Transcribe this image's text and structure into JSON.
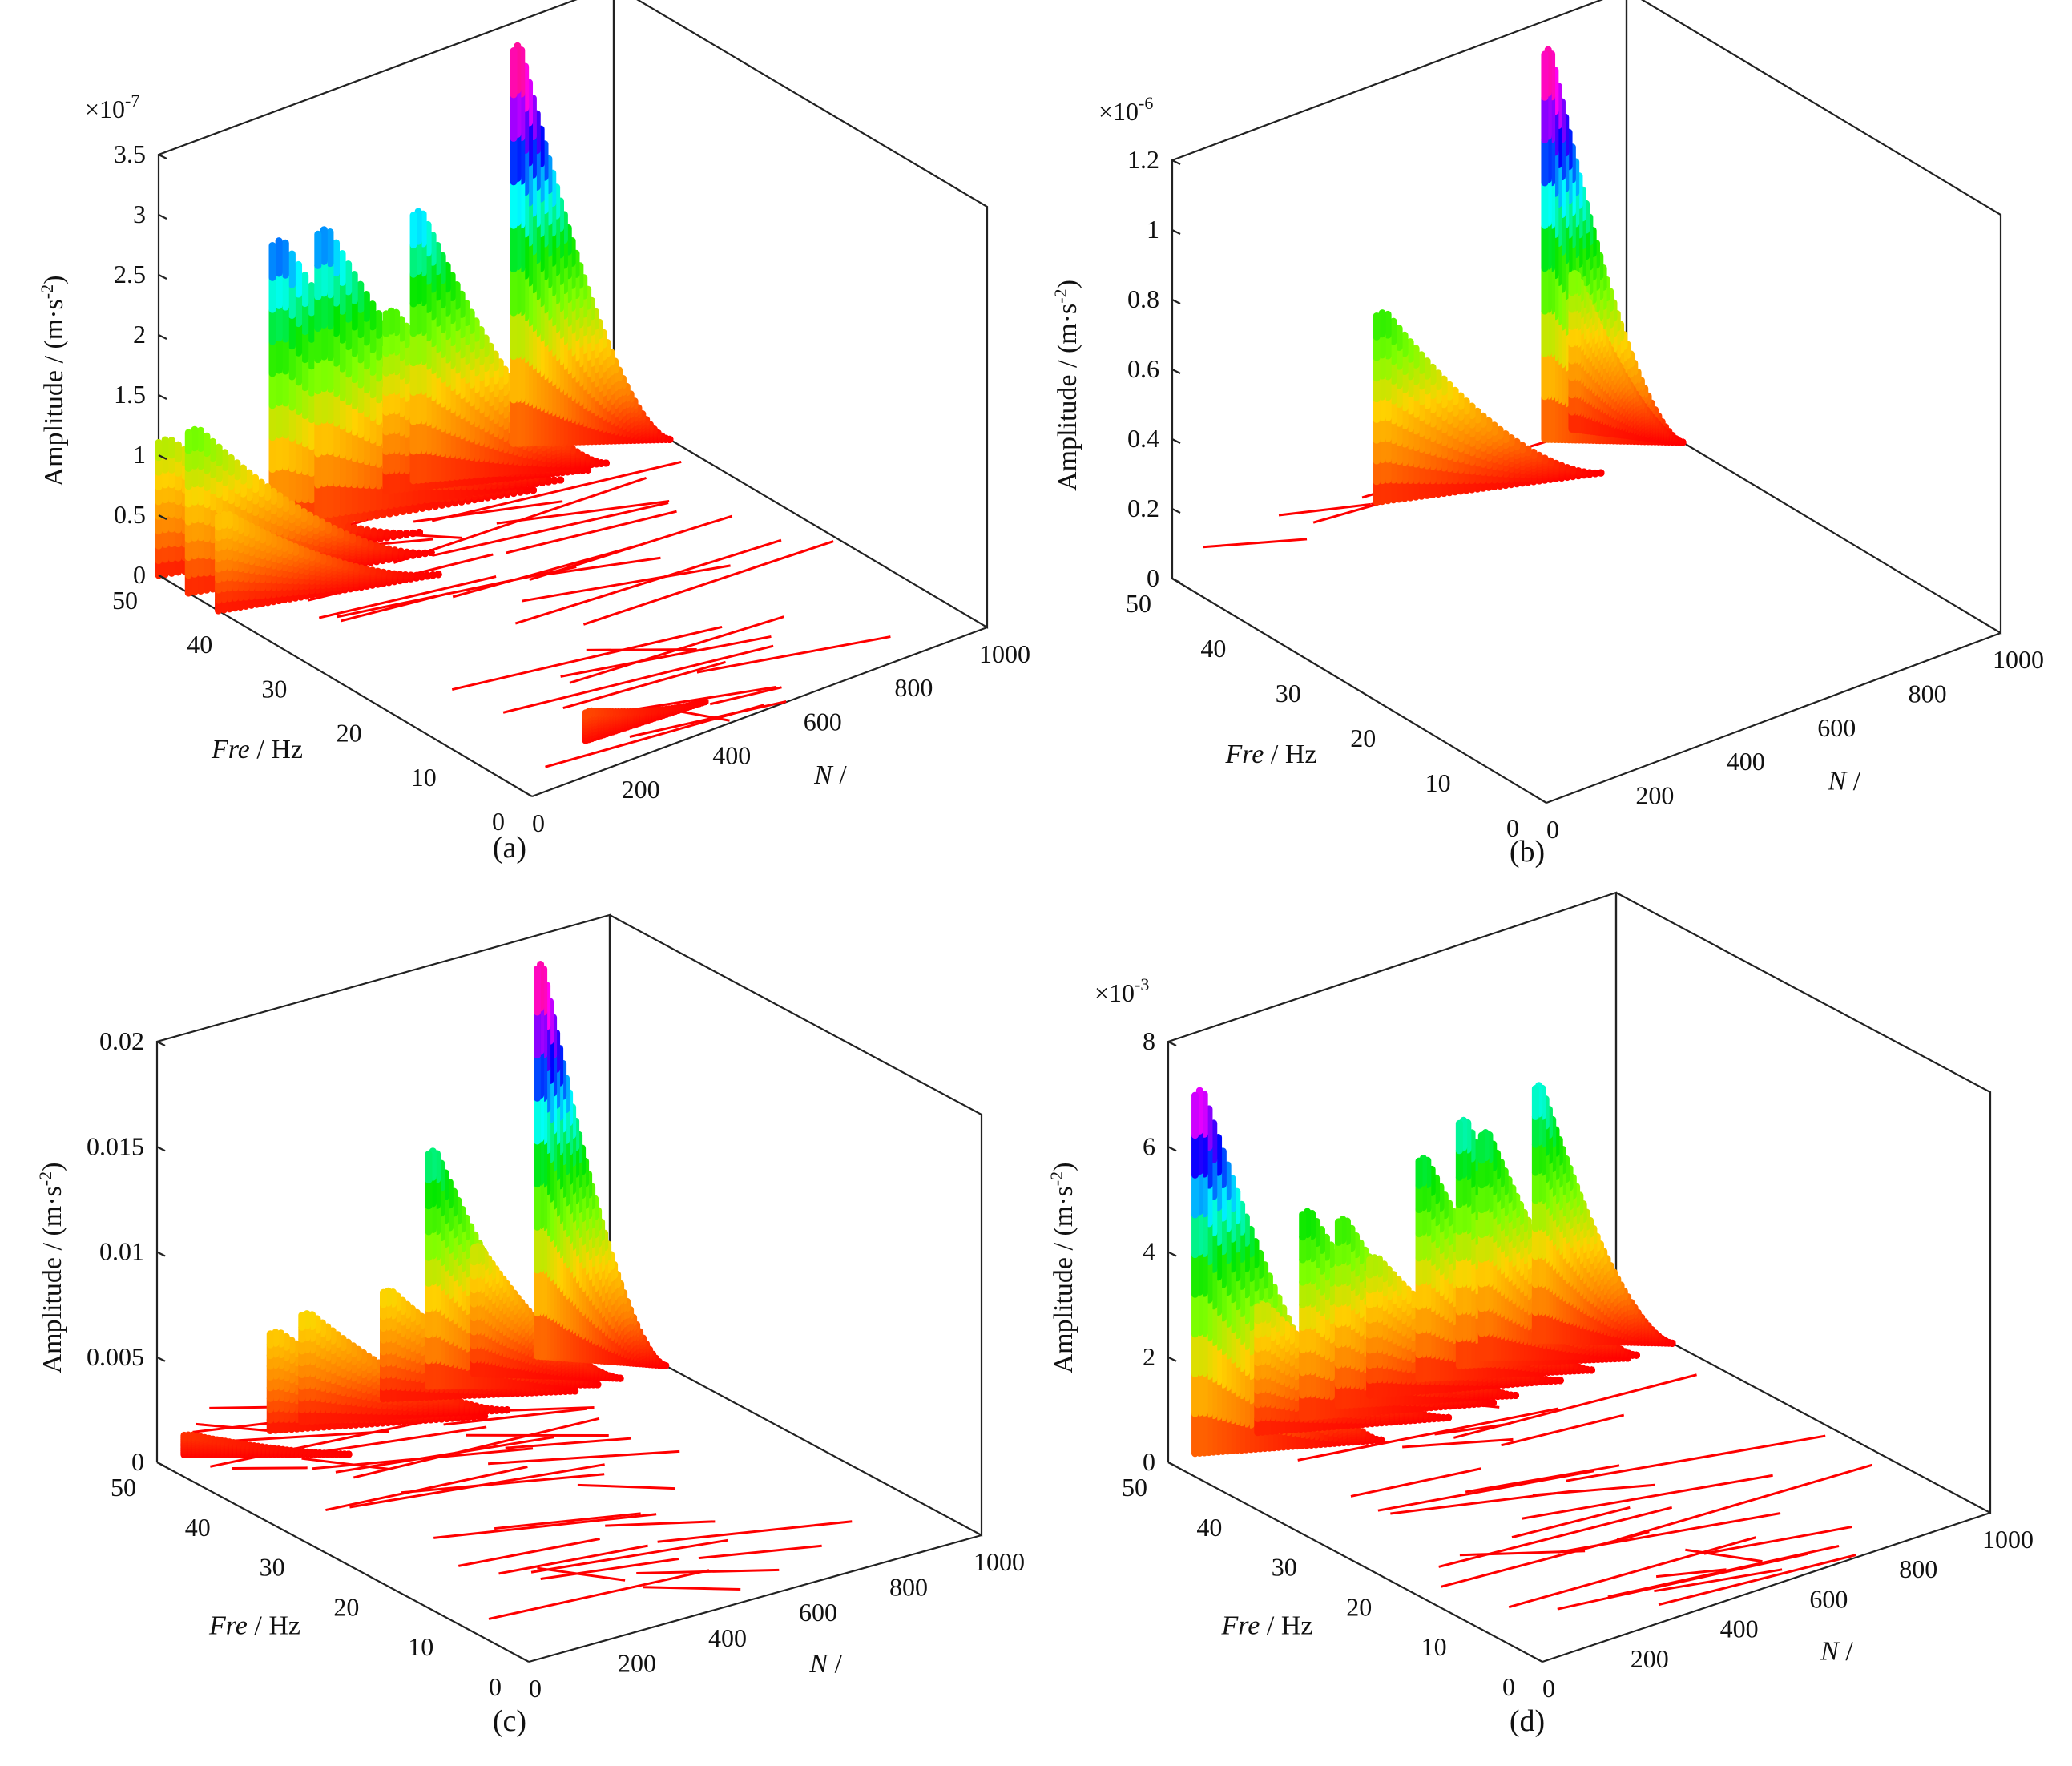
{
  "figure": {
    "panels_layout": "2x2 grid of 3D waterfall spectrum plots"
  },
  "colormap": [
    "#ff0000",
    "#ff7f00",
    "#ffd200",
    "#7fff00",
    "#00e600",
    "#00ffff",
    "#0000ff",
    "#ff00ff",
    "#ff1450"
  ],
  "chart_data": [
    {
      "id": "a",
      "caption": "(a)",
      "type": "3d-waterfall",
      "exponent_label": "×10",
      "exponent_sup": "-7",
      "zlabel": "Amplitude / (m·s",
      "zlabel_sup": "-2",
      "zlabel_tail": ")",
      "ylabel_italic": "Fre",
      "ylabel_rest": " / Hz",
      "xlabel_italic": "N",
      "xlabel_rest": " /",
      "zlim": [
        0,
        3.5
      ],
      "z_ticks": [
        "0",
        "0.5",
        "1",
        "1.5",
        "2",
        "2.5",
        "3",
        "3.5"
      ],
      "z_tick_values": [
        0,
        0.5,
        1,
        1.5,
        2,
        2.5,
        3,
        3.5
      ],
      "fre_ticks": [
        "0",
        "10",
        "20",
        "30",
        "40",
        "50"
      ],
      "fre_tick_values": [
        0,
        10,
        20,
        30,
        40,
        50
      ],
      "n_ticks": [
        "0",
        "200",
        "400",
        "600",
        "800",
        "1000"
      ],
      "n_tick_values": [
        0,
        200,
        400,
        600,
        800,
        1000
      ],
      "peaks": [
        {
          "fre": 50,
          "n_start": 0,
          "n_end": 450,
          "amp": 1.2
        },
        {
          "fre": 46,
          "n_start": 0,
          "n_end": 420,
          "amp": 1.45
        },
        {
          "fre": 42,
          "n_start": 0,
          "n_end": 380,
          "amp": 0.85
        },
        {
          "fre": 50,
          "n_start": 250,
          "n_end": 700,
          "amp": 2.6
        },
        {
          "fre": 50,
          "n_start": 350,
          "n_end": 760,
          "amp": 2.55
        },
        {
          "fre": 50,
          "n_start": 500,
          "n_end": 820,
          "amp": 1.6
        },
        {
          "fre": 50,
          "n_start": 560,
          "n_end": 860,
          "amp": 2.4
        },
        {
          "fre": 50,
          "n_start": 780,
          "n_end": 1000,
          "amp": 3.55
        },
        {
          "fre": 5,
          "n_start": 200,
          "n_end": 450,
          "amp": 0.25
        }
      ]
    },
    {
      "id": "b",
      "caption": "(b)",
      "type": "3d-waterfall",
      "exponent_label": "×10",
      "exponent_sup": "-6",
      "zlabel": "Amplitude / (m·s",
      "zlabel_sup": "-2",
      "zlabel_tail": ")",
      "ylabel_italic": "Fre",
      "ylabel_rest": " / Hz",
      "xlabel_italic": "N",
      "xlabel_rest": " /",
      "zlim": [
        0,
        1.2
      ],
      "z_ticks": [
        "0",
        "0.2",
        "0.4",
        "0.6",
        "0.8",
        "1",
        "1.2"
      ],
      "z_tick_values": [
        0,
        0.2,
        0.4,
        0.6,
        0.8,
        1.0,
        1.2
      ],
      "fre_ticks": [
        "0",
        "10",
        "20",
        "30",
        "40",
        "50"
      ],
      "fre_tick_values": [
        0,
        10,
        20,
        30,
        40,
        50
      ],
      "n_ticks": [
        "0",
        "200",
        "400",
        "600",
        "800",
        "1000"
      ],
      "n_tick_values": [
        0,
        200,
        400,
        600,
        800,
        1000
      ],
      "peaks": [
        {
          "fre": 50,
          "n_start": 450,
          "n_end": 820,
          "amp": 0.58
        },
        {
          "fre": 50,
          "n_start": 880,
          "n_end": 1000,
          "amp": 0.48
        },
        {
          "fre": 50,
          "n_start": 820,
          "n_end": 1000,
          "amp": 1.2
        }
      ]
    },
    {
      "id": "c",
      "caption": "(c)",
      "type": "3d-waterfall",
      "exponent_label": "",
      "exponent_sup": "",
      "zlabel": "Amplitude / (m·s",
      "zlabel_sup": "-2",
      "zlabel_tail": ")",
      "ylabel_italic": "Fre",
      "ylabel_rest": " / Hz",
      "xlabel_italic": "N",
      "xlabel_rest": " /",
      "zlim": [
        0,
        0.02
      ],
      "z_ticks": [
        "0",
        "0.005",
        "0.01",
        "0.015",
        "0.02"
      ],
      "z_tick_values": [
        0,
        0.005,
        0.01,
        0.015,
        0.02
      ],
      "fre_ticks": [
        "0",
        "10",
        "20",
        "30",
        "40",
        "50"
      ],
      "fre_tick_values": [
        0,
        10,
        20,
        30,
        40,
        50
      ],
      "n_ticks": [
        "0",
        "200",
        "400",
        "600",
        "800",
        "1000"
      ],
      "n_tick_values": [
        0,
        200,
        400,
        600,
        800,
        1000
      ],
      "peaks": [
        {
          "fre": 50,
          "n_start": 60,
          "n_end": 300,
          "amp": 0.001
        },
        {
          "fre": 50,
          "n_start": 250,
          "n_end": 600,
          "amp": 0.005
        },
        {
          "fre": 50,
          "n_start": 320,
          "n_end": 650,
          "amp": 0.0055
        },
        {
          "fre": 50,
          "n_start": 500,
          "n_end": 800,
          "amp": 0.0055
        },
        {
          "fre": 50,
          "n_start": 600,
          "n_end": 850,
          "amp": 0.012
        },
        {
          "fre": 50,
          "n_start": 700,
          "n_end": 900,
          "amp": 0.0065
        },
        {
          "fre": 50,
          "n_start": 840,
          "n_end": 1000,
          "amp": 0.02
        }
      ]
    },
    {
      "id": "d",
      "caption": "(d)",
      "type": "3d-waterfall",
      "exponent_label": "×10",
      "exponent_sup": "-3",
      "zlabel": "Amplitude / (m·s",
      "zlabel_sup": "-2",
      "zlabel_tail": ")",
      "ylabel_italic": "Fre",
      "ylabel_rest": " / Hz",
      "xlabel_italic": "N",
      "xlabel_rest": " /",
      "zlim": [
        0,
        8
      ],
      "z_ticks": [
        "0",
        "2",
        "4",
        "6",
        "8"
      ],
      "z_tick_values": [
        0,
        2,
        4,
        6,
        8
      ],
      "fre_ticks": [
        "0",
        "10",
        "20",
        "30",
        "40",
        "50"
      ],
      "fre_tick_values": [
        0,
        10,
        20,
        30,
        40,
        50
      ],
      "n_ticks": [
        "0",
        "200",
        "400",
        "600",
        "800",
        "1000"
      ],
      "n_tick_values": [
        0,
        200,
        400,
        600,
        800,
        1000
      ],
      "peaks": [
        {
          "fre": 50,
          "n_start": 60,
          "n_end": 350,
          "amp": 7.4
        },
        {
          "fre": 50,
          "n_start": 200,
          "n_end": 500,
          "amp": 2.6
        },
        {
          "fre": 50,
          "n_start": 300,
          "n_end": 600,
          "amp": 4.2
        },
        {
          "fre": 50,
          "n_start": 380,
          "n_end": 650,
          "amp": 3.8
        },
        {
          "fre": 50,
          "n_start": 560,
          "n_end": 820,
          "amp": 4.5
        },
        {
          "fre": 50,
          "n_start": 650,
          "n_end": 900,
          "amp": 5.0
        },
        {
          "fre": 50,
          "n_start": 700,
          "n_end": 920,
          "amp": 4.6
        },
        {
          "fre": 50,
          "n_start": 820,
          "n_end": 1000,
          "amp": 5.2
        },
        {
          "fre": 50,
          "n_start": 450,
          "n_end": 750,
          "amp": 2.8
        }
      ]
    }
  ]
}
